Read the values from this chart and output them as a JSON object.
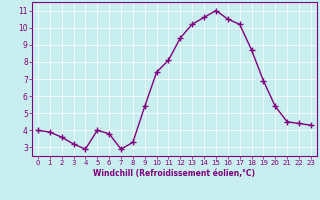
{
  "x": [
    0,
    1,
    2,
    3,
    4,
    5,
    6,
    7,
    8,
    9,
    10,
    11,
    12,
    13,
    14,
    15,
    16,
    17,
    18,
    19,
    20,
    21,
    22,
    23
  ],
  "y": [
    4.0,
    3.9,
    3.6,
    3.2,
    2.9,
    4.0,
    3.8,
    2.9,
    3.3,
    5.4,
    7.4,
    8.1,
    9.4,
    10.2,
    10.6,
    11.0,
    10.5,
    10.2,
    8.7,
    6.9,
    5.4,
    4.5,
    4.4,
    4.3
  ],
  "line_color": "#800080",
  "marker": "+",
  "marker_size": 4,
  "marker_lw": 1.0,
  "bg_color": "#c8eef0",
  "grid_color": "#ffffff",
  "xlabel": "Windchill (Refroidissement éolien,°C)",
  "xlabel_color": "#800080",
  "tick_color": "#800080",
  "spine_color": "#800080",
  "ylim": [
    2.5,
    11.5
  ],
  "xlim": [
    -0.5,
    23.5
  ],
  "yticks": [
    3,
    4,
    5,
    6,
    7,
    8,
    9,
    10,
    11
  ],
  "xticks": [
    0,
    1,
    2,
    3,
    4,
    5,
    6,
    7,
    8,
    9,
    10,
    11,
    12,
    13,
    14,
    15,
    16,
    17,
    18,
    19,
    20,
    21,
    22,
    23
  ],
  "xtick_fontsize": 5.0,
  "ytick_fontsize": 5.5,
  "xlabel_fontsize": 5.5,
  "xlabel_fontweight": "bold",
  "linewidth": 1.0,
  "grid_linewidth": 0.5
}
